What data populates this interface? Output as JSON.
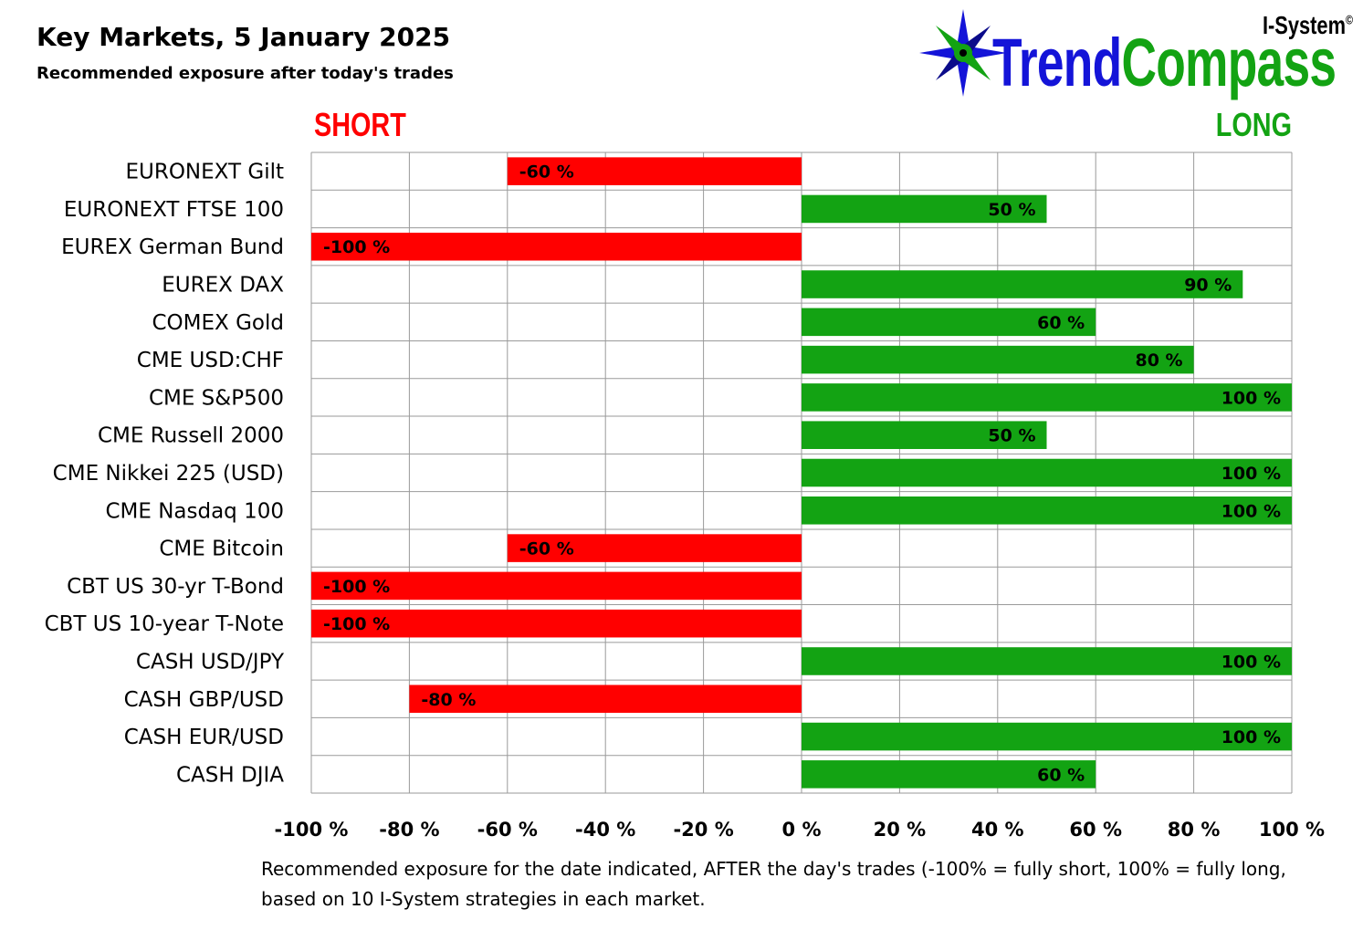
{
  "header": {
    "title": "Key Markets, 5 January 2025",
    "subtitle": "Recommended exposure after today's trades"
  },
  "logo": {
    "brand_top": "I-System",
    "copyright": "©",
    "word_part1": "Trend",
    "word_part2": "Compass",
    "icon": "compass-star-icon"
  },
  "labels": {
    "short": "SHORT",
    "long": "LONG"
  },
  "footnote": "Recommended exposure for the date indicated, AFTER the day's trades (-100% = fully short, 100% = fully long, based on 10 I-System strategies in each market.",
  "colors": {
    "negative": "#ff0000",
    "positive": "#13a313",
    "grid": "#9a9a9a"
  },
  "chart_data": {
    "type": "bar",
    "orientation": "horizontal",
    "categories": [
      "EURONEXT Gilt",
      "EURONEXT FTSE 100",
      "EUREX German Bund",
      "EUREX DAX",
      "COMEX Gold",
      "CME USD:CHF",
      "CME S&P500",
      "CME Russell 2000",
      "CME Nikkei 225 (USD)",
      "CME Nasdaq 100",
      "CME Bitcoin",
      "CBT US 30-yr T-Bond",
      "CBT US 10-year T-Note",
      "CASH USD/JPY",
      "CASH GBP/USD",
      "CASH EUR/USD",
      "CASH DJIA"
    ],
    "values": [
      -60,
      50,
      -100,
      90,
      60,
      80,
      100,
      50,
      100,
      100,
      -60,
      -100,
      -100,
      100,
      -80,
      100,
      60
    ],
    "value_labels": [
      "-60 %",
      "50 %",
      "-100 %",
      "90 %",
      "60 %",
      "80 %",
      "100 %",
      "50 %",
      "100 %",
      "100 %",
      "-60 %",
      "-100 %",
      "-100 %",
      "100 %",
      "-80 %",
      "100 %",
      "60 %"
    ],
    "xlim": [
      -100,
      100
    ],
    "xticks": [
      -100,
      -80,
      -60,
      -40,
      -20,
      0,
      20,
      40,
      60,
      80,
      100
    ],
    "xtick_labels": [
      "-100 %",
      "-80 %",
      "-60 %",
      "-40 %",
      "-20 %",
      "0 %",
      "20 %",
      "40 %",
      "60 %",
      "80 %",
      "100 %"
    ],
    "grid": true,
    "legend": "none"
  }
}
